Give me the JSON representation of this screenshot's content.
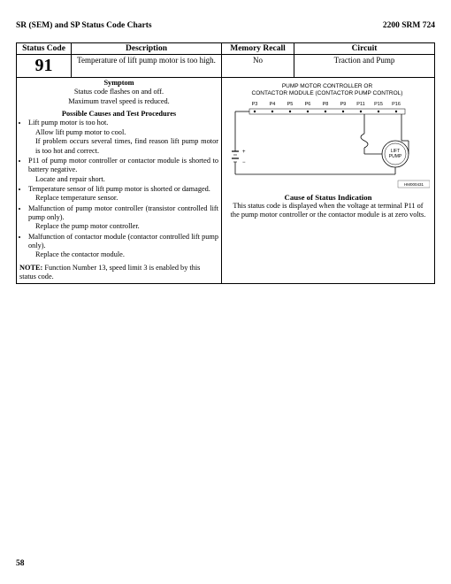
{
  "header": {
    "left": "SR (SEM) and SP Status Code Charts",
    "right": "2200 SRM 724"
  },
  "table_headers": {
    "status_code": "Status Code",
    "description": "Description",
    "memory_recall": "Memory Recall",
    "circuit": "Circuit"
  },
  "row": {
    "code": "91",
    "description": "Temperature of lift pump motor is too high.",
    "memory_recall": "No",
    "circuit": "Traction and Pump"
  },
  "symptom": {
    "heading": "Symptom",
    "line1": "Status code flashes on and off.",
    "line2": "Maximum travel speed is reduced.",
    "possible_heading": "Possible Causes and Test Procedures",
    "b1": "Lift pump motor is too hot.",
    "b1a": "Allow lift pump motor to cool.",
    "b1b": "If problem occurs several times, find reason lift pump motor is too hot and correct.",
    "b2": "P11 of pump motor controller or contactor module is shorted to battery negative.",
    "b2a": "Locate and repair short.",
    "b3": "Temperature sensor of lift pump motor is shorted or damaged.",
    "b3a": "Replace temperature sensor.",
    "b4": "Malfunction of pump motor controller (transistor controlled lift pump only).",
    "b4a": "Replace the pump motor controller.",
    "b5": "Malfunction of contactor module (contactor controlled lift pump only).",
    "b5a": "Replace the contactor module.",
    "note_label": "NOTE:",
    "note_text": " Function Number 13, speed limit 3 is enabled by this status code."
  },
  "diagram": {
    "title1": "PUMP MOTOR CONTROLLER OR",
    "title2": "CONTACTOR MODULE (CONTACTOR PUMP CONTROL)",
    "terminals": [
      "P3",
      "P4",
      "P5",
      "P6",
      "P8",
      "P9",
      "P11",
      "P15",
      "P16"
    ],
    "pump_label1": "LIFT",
    "pump_label2": "PUMP",
    "ref": "HM000431"
  },
  "cause": {
    "heading": "Cause of Status Indication",
    "text": "This status code is displayed when the voltage at terminal P11 of the pump motor controller or the contactor module is at zero volts."
  },
  "page_number": "58"
}
